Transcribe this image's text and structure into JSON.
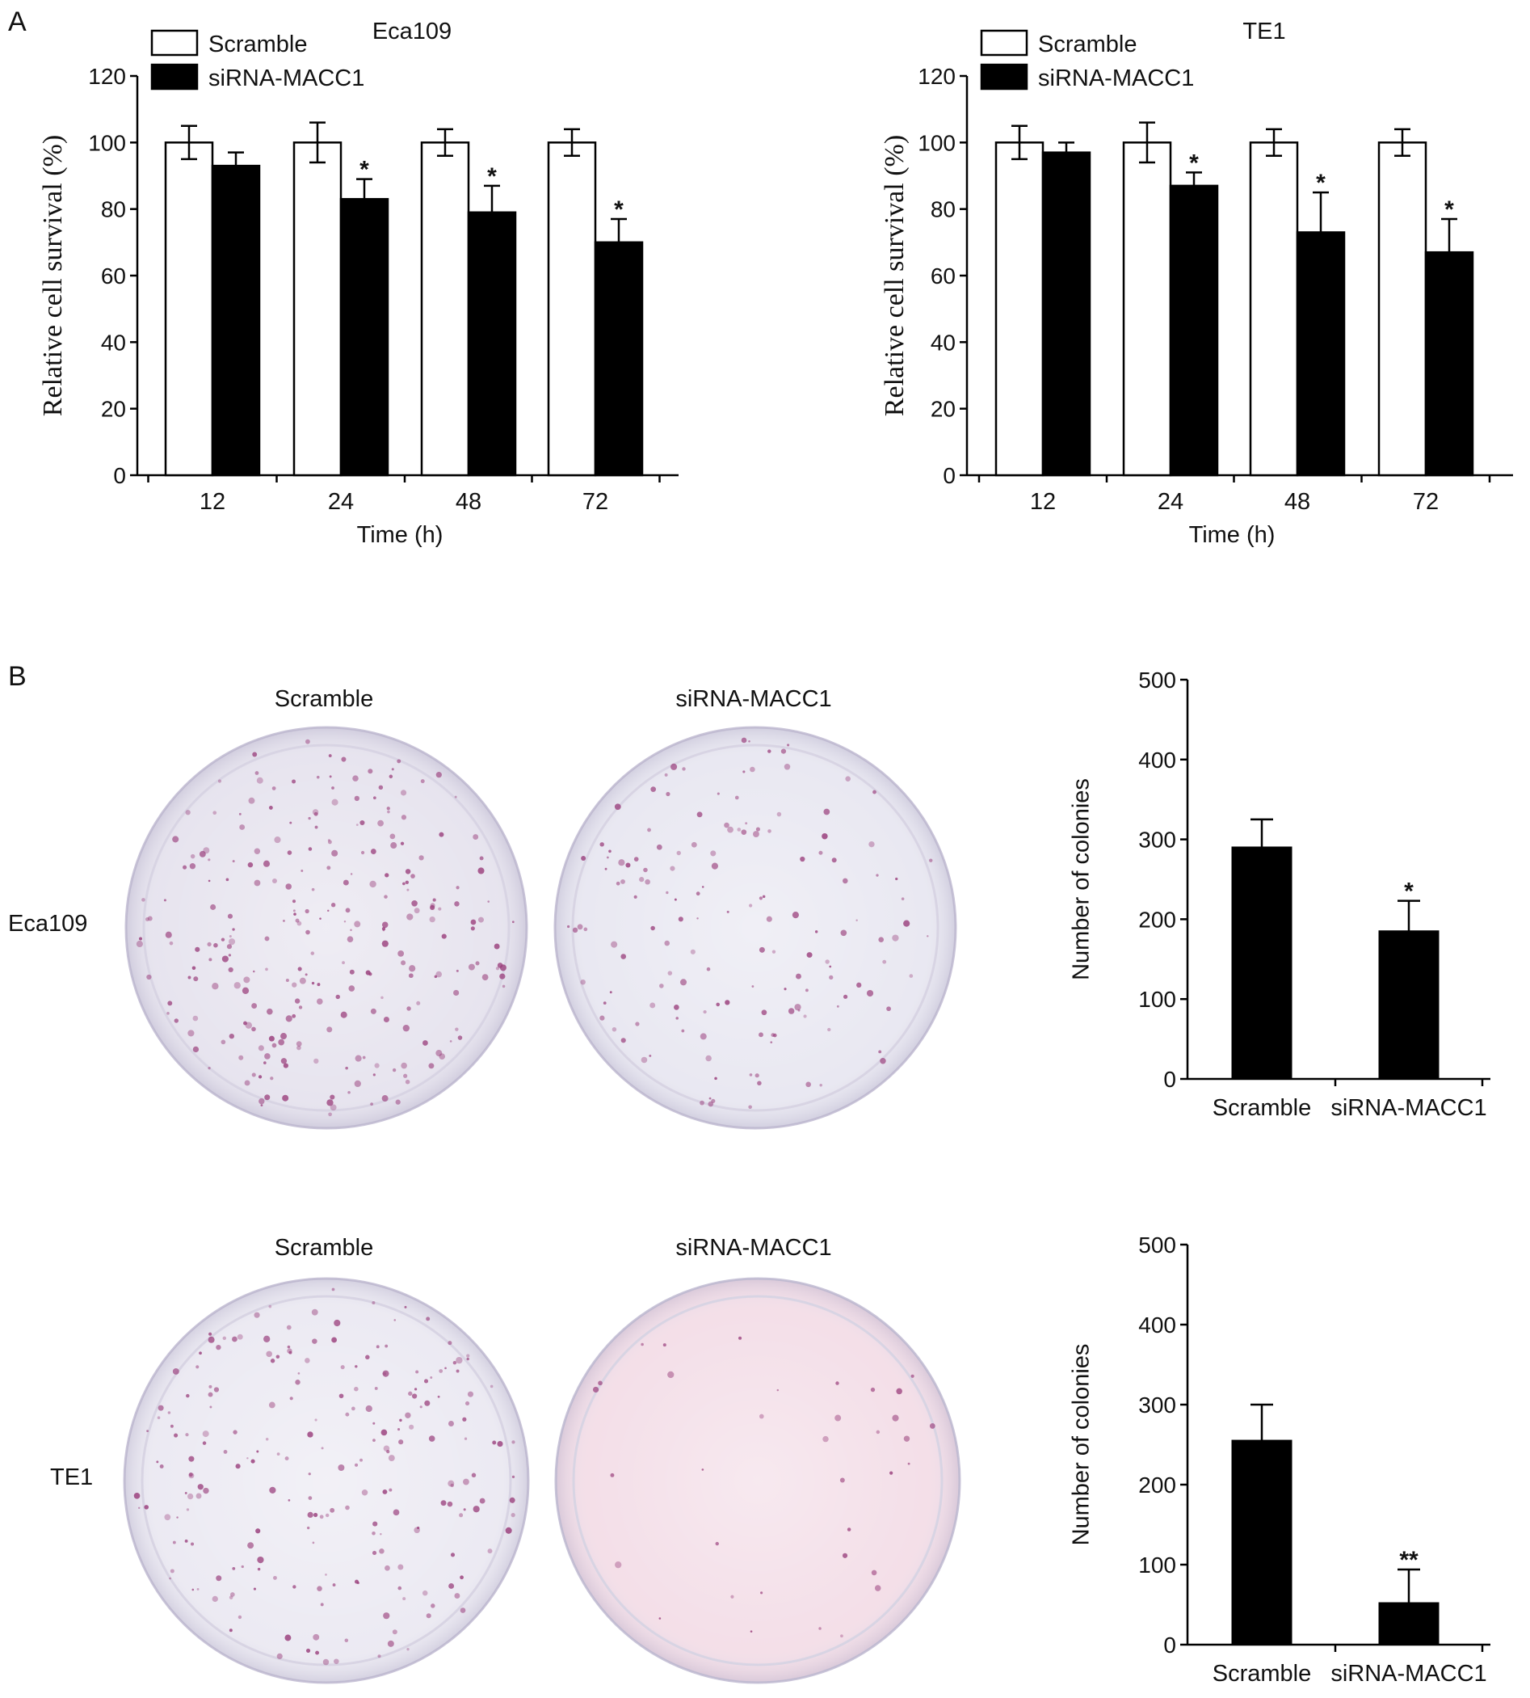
{
  "panel_labels": {
    "a": "A",
    "b": "B"
  },
  "chart_data": [
    {
      "id": "eca109_survival",
      "type": "bar",
      "title": "Eca109",
      "xlabel": "Time (h)",
      "ylabel": "Relative cell survival (%)",
      "categories": [
        "12",
        "24",
        "48",
        "72"
      ],
      "ylim": [
        0,
        120
      ],
      "yticks": [
        0,
        20,
        40,
        60,
        80,
        100,
        120
      ],
      "legend_position": "top-left",
      "series": [
        {
          "name": "Scramble",
          "fill": "#ffffff",
          "values": [
            100,
            100,
            100,
            100
          ],
          "errors": [
            5,
            6,
            4,
            4
          ]
        },
        {
          "name": "siRNA-MACC1",
          "fill": "#000000",
          "values": [
            93,
            83,
            79,
            70
          ],
          "errors": [
            4,
            6,
            8,
            7
          ]
        }
      ],
      "annotations": [
        "",
        "*",
        "*",
        "*"
      ],
      "grid": false
    },
    {
      "id": "te1_survival",
      "type": "bar",
      "title": "TE1",
      "xlabel": "Time (h)",
      "ylabel": "Relative cell survival (%)",
      "categories": [
        "12",
        "24",
        "48",
        "72"
      ],
      "ylim": [
        0,
        120
      ],
      "yticks": [
        0,
        20,
        40,
        60,
        80,
        100,
        120
      ],
      "legend_position": "top-left",
      "series": [
        {
          "name": "Scramble",
          "fill": "#ffffff",
          "values": [
            100,
            100,
            100,
            100
          ],
          "errors": [
            5,
            6,
            4,
            4
          ]
        },
        {
          "name": "siRNA-MACC1",
          "fill": "#000000",
          "values": [
            97,
            87,
            73,
            67
          ],
          "errors": [
            3,
            4,
            12,
            10
          ]
        }
      ],
      "annotations": [
        "",
        "*",
        "*",
        "*"
      ],
      "grid": false
    },
    {
      "id": "eca109_colonies",
      "type": "bar",
      "ylabel": "Number of colonies",
      "categories": [
        "Scramble",
        "siRNA-MACC1"
      ],
      "ylim": [
        0,
        500
      ],
      "yticks": [
        0,
        100,
        200,
        300,
        400,
        500
      ],
      "values": [
        290,
        185
      ],
      "errors": [
        35,
        38
      ],
      "annotations": [
        "",
        "*"
      ],
      "fill": "#000000",
      "grid": false
    },
    {
      "id": "te1_colonies",
      "type": "bar",
      "ylabel": "Number of colonies",
      "categories": [
        "Scramble",
        "siRNA-MACC1"
      ],
      "ylim": [
        0,
        500
      ],
      "yticks": [
        0,
        100,
        200,
        300,
        400,
        500
      ],
      "values": [
        255,
        52
      ],
      "errors": [
        45,
        42
      ],
      "annotations": [
        "",
        "**"
      ],
      "fill": "#000000",
      "grid": false
    }
  ],
  "photos": {
    "column_labels": [
      "Scramble",
      "siRNA-MACC1"
    ],
    "row_labels": [
      "Eca109",
      "TE1"
    ],
    "colors": {
      "eca_scramble": "#e6e3ee",
      "eca_sirna": "#e8e7f1",
      "te1_scramble": "#ebe9f2",
      "te1_sirna": "#f3dde7",
      "colony": "#9a3f7c"
    }
  }
}
